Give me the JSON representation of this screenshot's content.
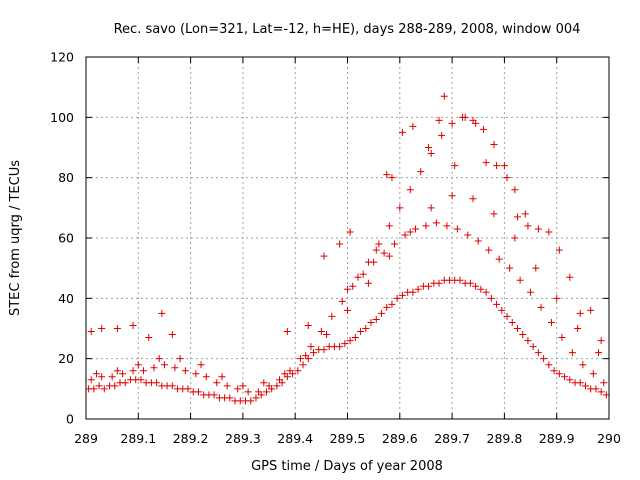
{
  "chart_data": {
    "type": "scatter",
    "title": "Rec. savo (Lon=321, Lat=-12, h=HE), days 288-289, 2008, window 004",
    "xlabel": "GPS time / Days of year 2008",
    "ylabel": "STEC from uqrg / TECUs",
    "xlim": [
      289,
      290
    ],
    "ylim": [
      0,
      120
    ],
    "xticks": [
      "289",
      "289.1",
      "289.2",
      "289.3",
      "289.4",
      "289.5",
      "289.6",
      "289.7",
      "289.8",
      "289.9",
      "290"
    ],
    "yticks": [
      "0",
      "20",
      "40",
      "60",
      "80",
      "100",
      "120"
    ],
    "grid": true,
    "marker": "+",
    "color": "#dd0000",
    "series": [
      {
        "x": [
          289.005,
          289.015,
          289.025,
          289.035,
          289.045,
          289.055,
          289.065,
          289.075,
          289.085,
          289.095,
          289.105,
          289.115,
          289.125,
          289.135,
          289.145,
          289.155,
          289.165,
          289.175,
          289.185,
          289.195,
          289.205,
          289.215,
          289.225,
          289.235,
          289.245,
          289.255,
          289.265,
          289.275,
          289.285,
          289.295,
          289.305,
          289.315,
          289.325,
          289.335,
          289.345,
          289.355,
          289.365,
          289.375,
          289.385,
          289.395,
          289.405,
          289.415,
          289.425,
          289.435,
          289.445,
          289.455,
          289.465,
          289.475,
          289.485,
          289.495,
          289.505,
          289.515,
          289.525,
          289.535,
          289.545,
          289.555,
          289.565,
          289.575,
          289.585,
          289.595,
          289.605,
          289.615,
          289.625,
          289.635,
          289.645,
          289.655,
          289.665,
          289.675,
          289.685,
          289.695,
          289.705,
          289.715,
          289.725,
          289.735,
          289.745,
          289.755,
          289.765,
          289.775,
          289.785,
          289.795,
          289.805,
          289.815,
          289.825,
          289.835,
          289.845,
          289.855,
          289.865,
          289.875,
          289.885,
          289.895,
          289.905,
          289.915,
          289.925,
          289.935,
          289.945,
          289.955,
          289.965,
          289.975,
          289.985,
          289.995
        ],
        "y": [
          10,
          10,
          11,
          10,
          11,
          11,
          12,
          12,
          13,
          13,
          13,
          12,
          12,
          12,
          11,
          11,
          11,
          10,
          10,
          10,
          9,
          9,
          8,
          8,
          8,
          7,
          7,
          7,
          6,
          6,
          6,
          6,
          7,
          8,
          9,
          10,
          11,
          12,
          14,
          15,
          16,
          18,
          20,
          22,
          23,
          23,
          24,
          24,
          24,
          25,
          26,
          27,
          29,
          30,
          32,
          33,
          35,
          37,
          38,
          40,
          41,
          42,
          42,
          43,
          44,
          44,
          45,
          45,
          46,
          46,
          46,
          46,
          45,
          45,
          44,
          43,
          42,
          40,
          38,
          36,
          34,
          32,
          30,
          28,
          26,
          24,
          22,
          20,
          18,
          16,
          15,
          14,
          13,
          12,
          12,
          11,
          10,
          10,
          9,
          8
        ]
      },
      {
        "x": [
          289.01,
          289.03,
          289.05,
          289.07,
          289.09,
          289.11,
          289.13,
          289.15,
          289.17,
          289.19,
          289.21,
          289.23,
          289.25,
          289.27,
          289.29,
          289.31,
          289.33,
          289.35,
          289.37,
          289.39,
          289.41,
          289.43,
          289.45,
          289.47,
          289.49,
          289.51,
          289.53,
          289.55,
          289.57,
          289.59,
          289.61,
          289.63,
          289.65,
          289.67,
          289.69,
          289.71,
          289.73,
          289.75,
          289.77,
          289.79,
          289.81,
          289.83,
          289.85,
          289.87,
          289.89,
          289.91,
          289.93,
          289.95,
          289.97,
          289.99
        ],
        "y": [
          13,
          14,
          14,
          15,
          16,
          16,
          17,
          18,
          17,
          16,
          15,
          14,
          12,
          11,
          10,
          9,
          9,
          11,
          13,
          16,
          20,
          24,
          29,
          34,
          39,
          44,
          48,
          52,
          55,
          58,
          61,
          63,
          64,
          65,
          64,
          63,
          61,
          59,
          56,
          53,
          50,
          46,
          42,
          37,
          32,
          27,
          22,
          18,
          15,
          12
        ]
      },
      {
        "x": [
          289.02,
          289.06,
          289.1,
          289.14,
          289.18,
          289.22,
          289.26,
          289.3,
          289.34,
          289.38,
          289.42,
          289.46,
          289.5,
          289.54,
          289.58,
          289.62,
          289.66,
          289.7,
          289.74,
          289.78,
          289.82,
          289.86,
          289.9,
          289.94,
          289.98
        ],
        "y": [
          15,
          16,
          18,
          20,
          20,
          18,
          14,
          11,
          12,
          15,
          21,
          28,
          36,
          45,
          54,
          62,
          70,
          74,
          73,
          68,
          60,
          50,
          40,
          30,
          22
        ]
      },
      {
        "x": [
          289.5,
          289.52,
          289.54,
          289.56,
          289.58,
          289.6,
          289.62,
          289.64,
          289.66,
          289.68,
          289.7,
          289.72,
          289.74,
          289.76,
          289.78,
          289.8,
          289.82,
          289.84
        ],
        "y": [
          43,
          47,
          52,
          58,
          64,
          70,
          76,
          82,
          88,
          94,
          98,
          100,
          99,
          96,
          91,
          84,
          76,
          68
        ]
      },
      {
        "x": [
          289.01,
          289.03,
          289.06,
          289.09,
          289.12,
          289.145,
          289.165,
          289.385,
          289.425,
          289.455,
          289.485,
          289.505,
          289.555,
          289.575,
          289.585,
          289.605,
          289.625,
          289.655,
          289.675,
          289.685,
          289.705,
          289.725,
          289.745,
          289.765,
          289.785,
          289.805,
          289.825,
          289.845,
          289.865,
          289.885,
          289.905,
          289.925,
          289.945,
          289.965,
          289.985
        ],
        "y": [
          29,
          30,
          30,
          31,
          27,
          35,
          28,
          29,
          31,
          54,
          58,
          62,
          56,
          81,
          80,
          95,
          97,
          90,
          99,
          107,
          84,
          100,
          98,
          85,
          84,
          80,
          67,
          64,
          63,
          62,
          56,
          47,
          35,
          36,
          26
        ]
      }
    ]
  }
}
